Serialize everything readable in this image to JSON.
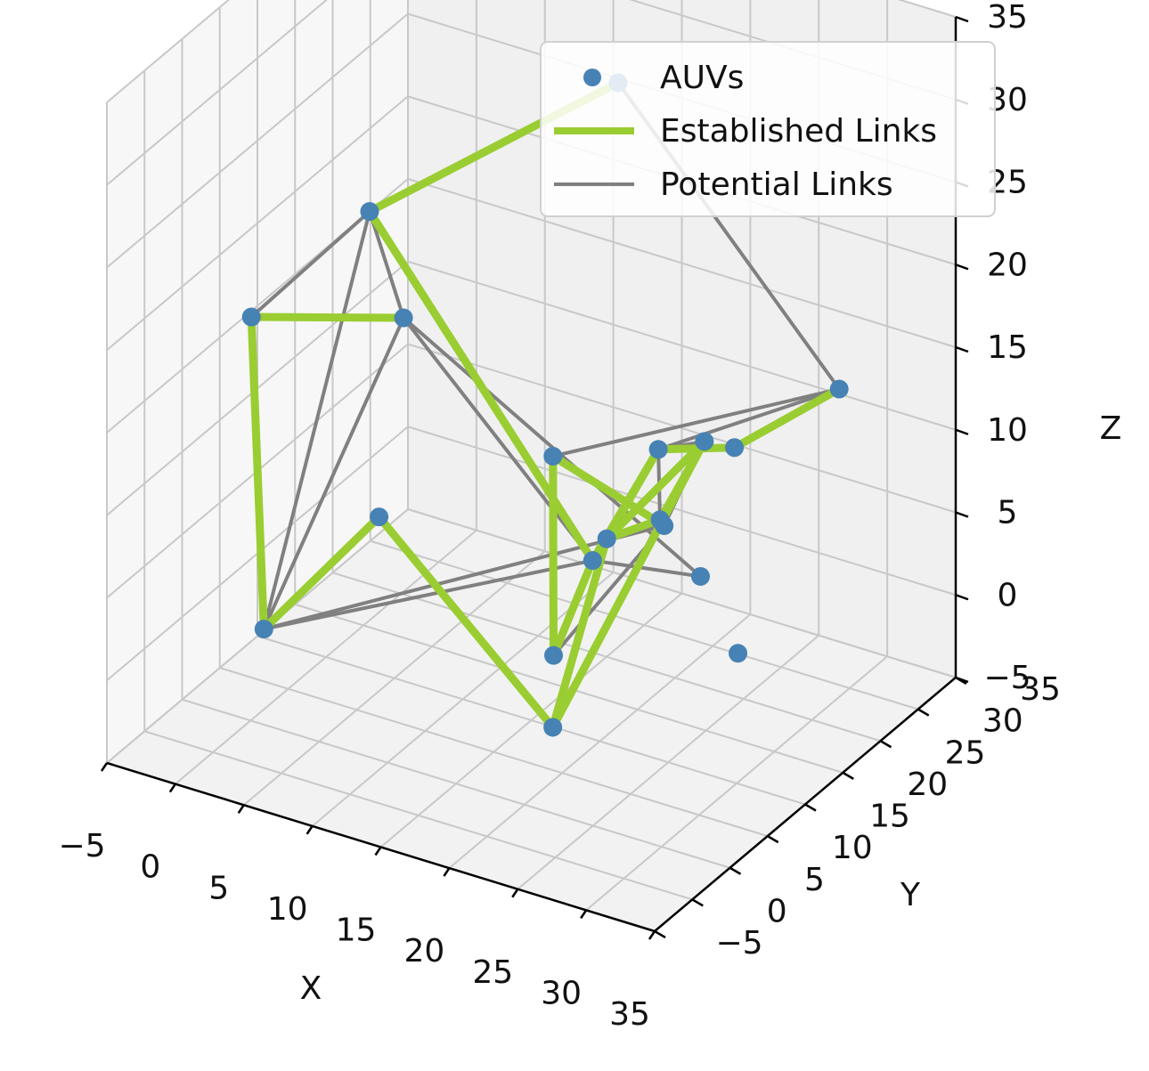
{
  "chart_data": {
    "type": "scatter",
    "projection": "3d",
    "xlabel": "X",
    "ylabel": "Y",
    "zlabel": "Z",
    "xlim": [
      -5,
      35
    ],
    "ylim": [
      -5,
      35
    ],
    "zlim": [
      -5,
      35
    ],
    "xticks": [
      -5,
      0,
      5,
      10,
      15,
      20,
      25,
      30,
      35
    ],
    "yticks": [
      -5,
      0,
      5,
      10,
      15,
      20,
      25,
      30,
      35
    ],
    "zticks": [
      -5,
      0,
      5,
      10,
      15,
      20,
      25,
      30,
      35
    ],
    "tick_labels": {
      "x": [
        "−5",
        "0",
        "5",
        "10",
        "15",
        "20",
        "25",
        "30",
        "35"
      ],
      "y": [
        "−5",
        "0",
        "5",
        "10",
        "15",
        "20",
        "25",
        "30",
        "35"
      ],
      "z": [
        "−5",
        "0",
        "5",
        "10",
        "15",
        "20",
        "25",
        "30",
        "35"
      ]
    },
    "grid": true,
    "legend": {
      "position": "top-right",
      "entries": [
        {
          "label": "AUVs",
          "kind": "marker",
          "color": "#4682b4"
        },
        {
          "label": "Established Links",
          "kind": "line",
          "color": "#9acd32"
        },
        {
          "label": "Potential Links",
          "kind": "line",
          "color": "#808080"
        }
      ]
    },
    "colors": {
      "auv": "#4682b4",
      "established": "#9acd32",
      "potential": "#808080"
    },
    "auvs": [
      {
        "id": "A",
        "x": 16.4,
        "y": 24.0,
        "z": 30.5
      },
      {
        "id": "B",
        "x": 5.5,
        "y": 10.8,
        "z": 25.0
      },
      {
        "id": "C",
        "x": 0.0,
        "y": 5.1,
        "z": 19.4
      },
      {
        "id": "D",
        "x": 8.2,
        "y": 10.4,
        "z": 19.4
      },
      {
        "id": "E",
        "x": 3.5,
        "y": 0.4,
        "z": 3.2
      },
      {
        "id": "F",
        "x": 16.8,
        "y": 14.6,
        "z": 11.6
      },
      {
        "id": "G",
        "x": 20.3,
        "y": 13.5,
        "z": 6.6
      },
      {
        "id": "H",
        "x": 19.1,
        "y": 10.5,
        "z": 1.7
      },
      {
        "id": "I",
        "x": 28.8,
        "y": 30.8,
        "z": 12.5
      },
      {
        "id": "J",
        "x": 26.7,
        "y": 20.7,
        "z": 12.3
      },
      {
        "id": "K",
        "x": 24.0,
        "y": 15.5,
        "z": 13.5
      },
      {
        "id": "L",
        "x": 25.8,
        "y": 13.0,
        "z": 10.3
      },
      {
        "id": "M",
        "x": 29.5,
        "y": 11.1,
        "z": 8.9
      },
      {
        "id": "N",
        "x": 32.4,
        "y": 10.8,
        "z": 5.1
      },
      {
        "id": "O",
        "x": 28.7,
        "y": 0.1,
        "z": 15.2
      },
      {
        "id": "P",
        "x": 31.6,
        "y": 1.9,
        "z": 16.4
      },
      {
        "id": "Q",
        "x": 33.3,
        "y": 4.7,
        "z": 20.5
      },
      {
        "id": "R",
        "x": 25.2,
        "y": -0.7,
        "z": 3.2
      },
      {
        "id": "S",
        "x": 14.6,
        "y": -4.5,
        "z": 14.7
      }
    ],
    "established_links": [
      [
        "A",
        "B"
      ],
      [
        "B",
        "G"
      ],
      [
        "C",
        "D"
      ],
      [
        "C",
        "E"
      ],
      [
        "E",
        "S"
      ],
      [
        "S",
        "R"
      ],
      [
        "R",
        "O"
      ],
      [
        "O",
        "K"
      ],
      [
        "K",
        "J"
      ],
      [
        "J",
        "I"
      ],
      [
        "F",
        "L"
      ],
      [
        "F",
        "H"
      ],
      [
        "H",
        "G"
      ],
      [
        "G",
        "K"
      ],
      [
        "O",
        "Q"
      ],
      [
        "P",
        "Q"
      ],
      [
        "O",
        "P"
      ],
      [
        "R",
        "Q"
      ]
    ],
    "potential_links": [
      [
        "A",
        "I"
      ],
      [
        "B",
        "C"
      ],
      [
        "B",
        "D"
      ],
      [
        "B",
        "E"
      ],
      [
        "D",
        "E"
      ],
      [
        "D",
        "G"
      ],
      [
        "D",
        "M"
      ],
      [
        "E",
        "G"
      ],
      [
        "E",
        "L"
      ],
      [
        "F",
        "I"
      ],
      [
        "G",
        "M"
      ],
      [
        "H",
        "L"
      ],
      [
        "I",
        "K"
      ],
      [
        "K",
        "Q"
      ],
      [
        "L",
        "O"
      ],
      [
        "L",
        "P"
      ],
      [
        "L",
        "Q"
      ],
      [
        "K",
        "P"
      ],
      [
        "O",
        "Q"
      ],
      [
        "P",
        "R"
      ]
    ]
  }
}
